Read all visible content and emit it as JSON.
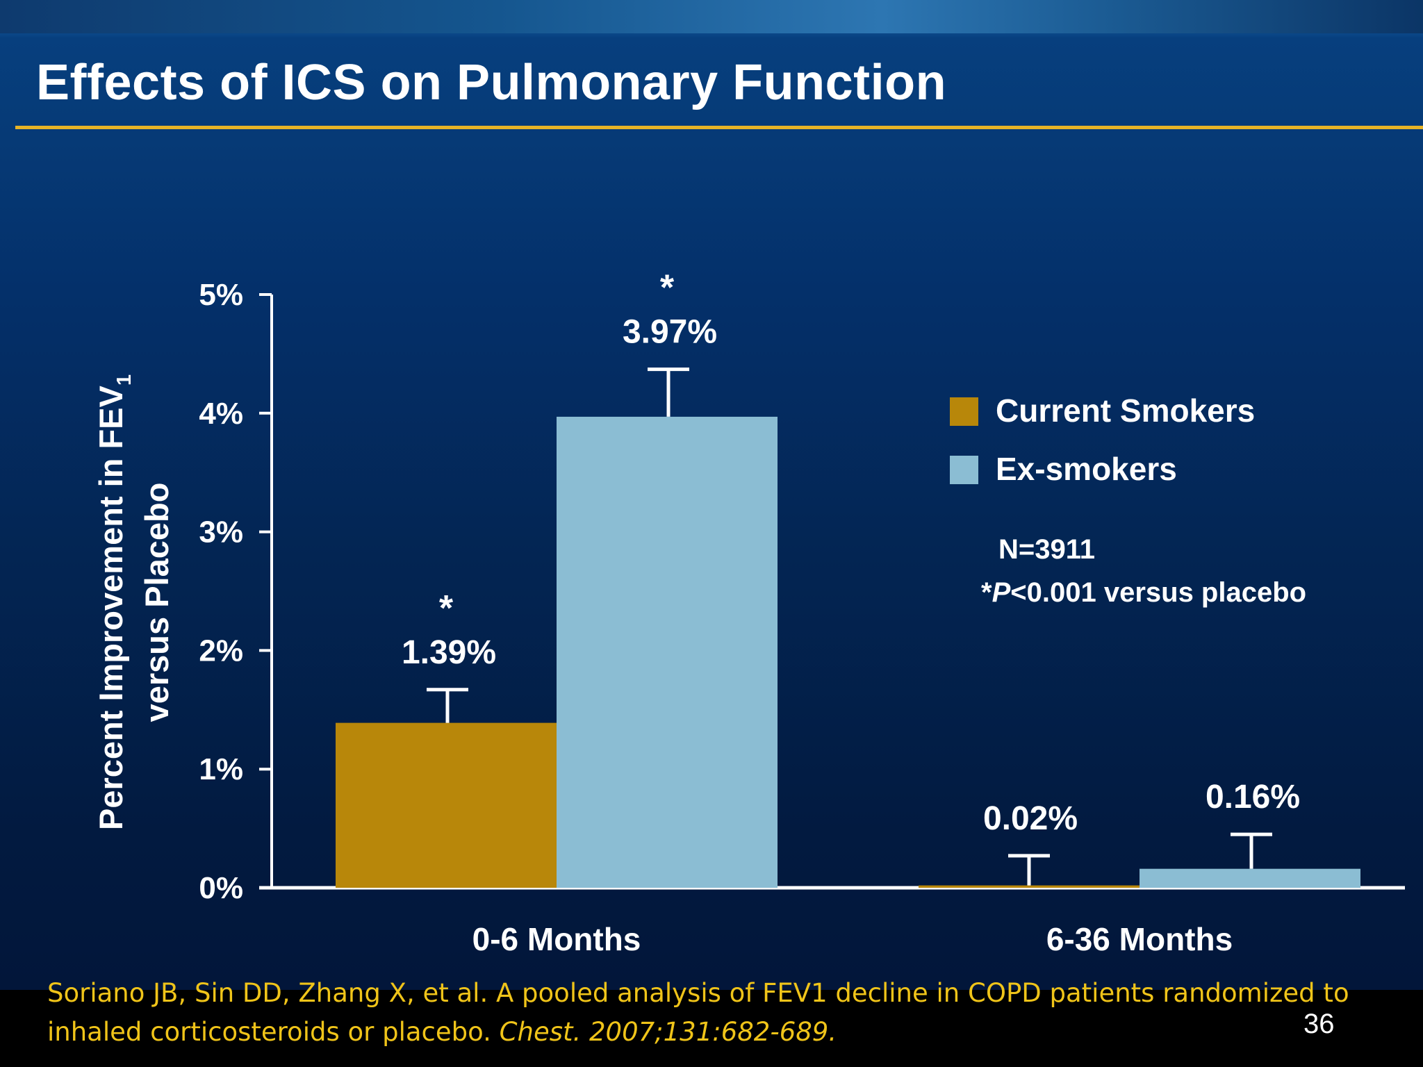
{
  "slide": {
    "title": "Effects of ICS on Pulmonary Function",
    "page_number": "36",
    "title_rule_color": "#e7b427"
  },
  "citation": {
    "authors": "Soriano JB, Sin DD, Zhang X, et al. A pooled analysis of FEV1 decline in COPD patients randomized to inhaled corticosteroids or placebo.",
    "journal": "Chest. 2007;131:682-689."
  },
  "chart_data": {
    "type": "bar",
    "title": "Effects of ICS on Pulmonary Function",
    "ylabel_line1": "Percent Improvement in FEV",
    "ylabel_subscript": "1",
    "ylabel_line2": "versus Placebo",
    "xlabel": "",
    "ylim": [
      0,
      5
    ],
    "yticks": [
      {
        "value": 0,
        "label": "0%"
      },
      {
        "value": 1,
        "label": "1%"
      },
      {
        "value": 2,
        "label": "2%"
      },
      {
        "value": 3,
        "label": "3%"
      },
      {
        "value": 4,
        "label": "4%"
      },
      {
        "value": 5,
        "label": "5%"
      }
    ],
    "categories": [
      "0-6 Months",
      "6-36 Months"
    ],
    "series": [
      {
        "name": "Current Smokers",
        "color": "#b8870a",
        "values": [
          1.39,
          0.02
        ],
        "error_upper": [
          1.67,
          0.27
        ],
        "labels": [
          "1.39%",
          "0.02%"
        ],
        "significant": [
          true,
          false
        ]
      },
      {
        "name": "Ex-smokers",
        "color": "#8bbdd3",
        "values": [
          3.97,
          0.16
        ],
        "error_upper": [
          4.37,
          0.45
        ],
        "labels": [
          "3.97%",
          "0.16%"
        ],
        "significant": [
          true,
          false
        ]
      }
    ],
    "significance_marker": "*",
    "legend_position": "right",
    "annotations": [
      "N=3911",
      "*P<0.001 versus placebo"
    ],
    "grid": false
  }
}
